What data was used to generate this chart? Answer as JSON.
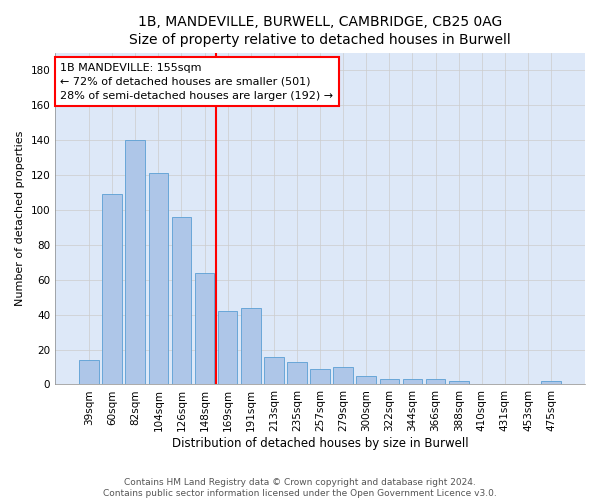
{
  "title": "1B, MANDEVILLE, BURWELL, CAMBRIDGE, CB25 0AG",
  "subtitle": "Size of property relative to detached houses in Burwell",
  "xlabel": "Distribution of detached houses by size in Burwell",
  "ylabel": "Number of detached properties",
  "categories": [
    "39sqm",
    "60sqm",
    "82sqm",
    "104sqm",
    "126sqm",
    "148sqm",
    "169sqm",
    "191sqm",
    "213sqm",
    "235sqm",
    "257sqm",
    "279sqm",
    "300sqm",
    "322sqm",
    "344sqm",
    "366sqm",
    "388sqm",
    "410sqm",
    "431sqm",
    "453sqm",
    "475sqm"
  ],
  "values": [
    14,
    109,
    140,
    121,
    96,
    64,
    42,
    44,
    16,
    13,
    9,
    10,
    5,
    3,
    3,
    3,
    2,
    0,
    0,
    0,
    2
  ],
  "bar_color": "#aec6e8",
  "bar_edge_color": "#5a9fd4",
  "property_line_x": 5.5,
  "annotation_text": "1B MANDEVILLE: 155sqm\n← 72% of detached houses are smaller (501)\n28% of semi-detached houses are larger (192) →",
  "annotation_box_color": "white",
  "annotation_box_edge_color": "red",
  "vline_color": "red",
  "ylim": [
    0,
    190
  ],
  "yticks": [
    0,
    20,
    40,
    60,
    80,
    100,
    120,
    140,
    160,
    180
  ],
  "grid_color": "#cccccc",
  "background_color": "#dde8f8",
  "footer_text": "Contains HM Land Registry data © Crown copyright and database right 2024.\nContains public sector information licensed under the Open Government Licence v3.0.",
  "title_fontsize": 10,
  "xlabel_fontsize": 8.5,
  "ylabel_fontsize": 8,
  "tick_fontsize": 7.5,
  "footer_fontsize": 6.5,
  "annotation_fontsize": 8
}
